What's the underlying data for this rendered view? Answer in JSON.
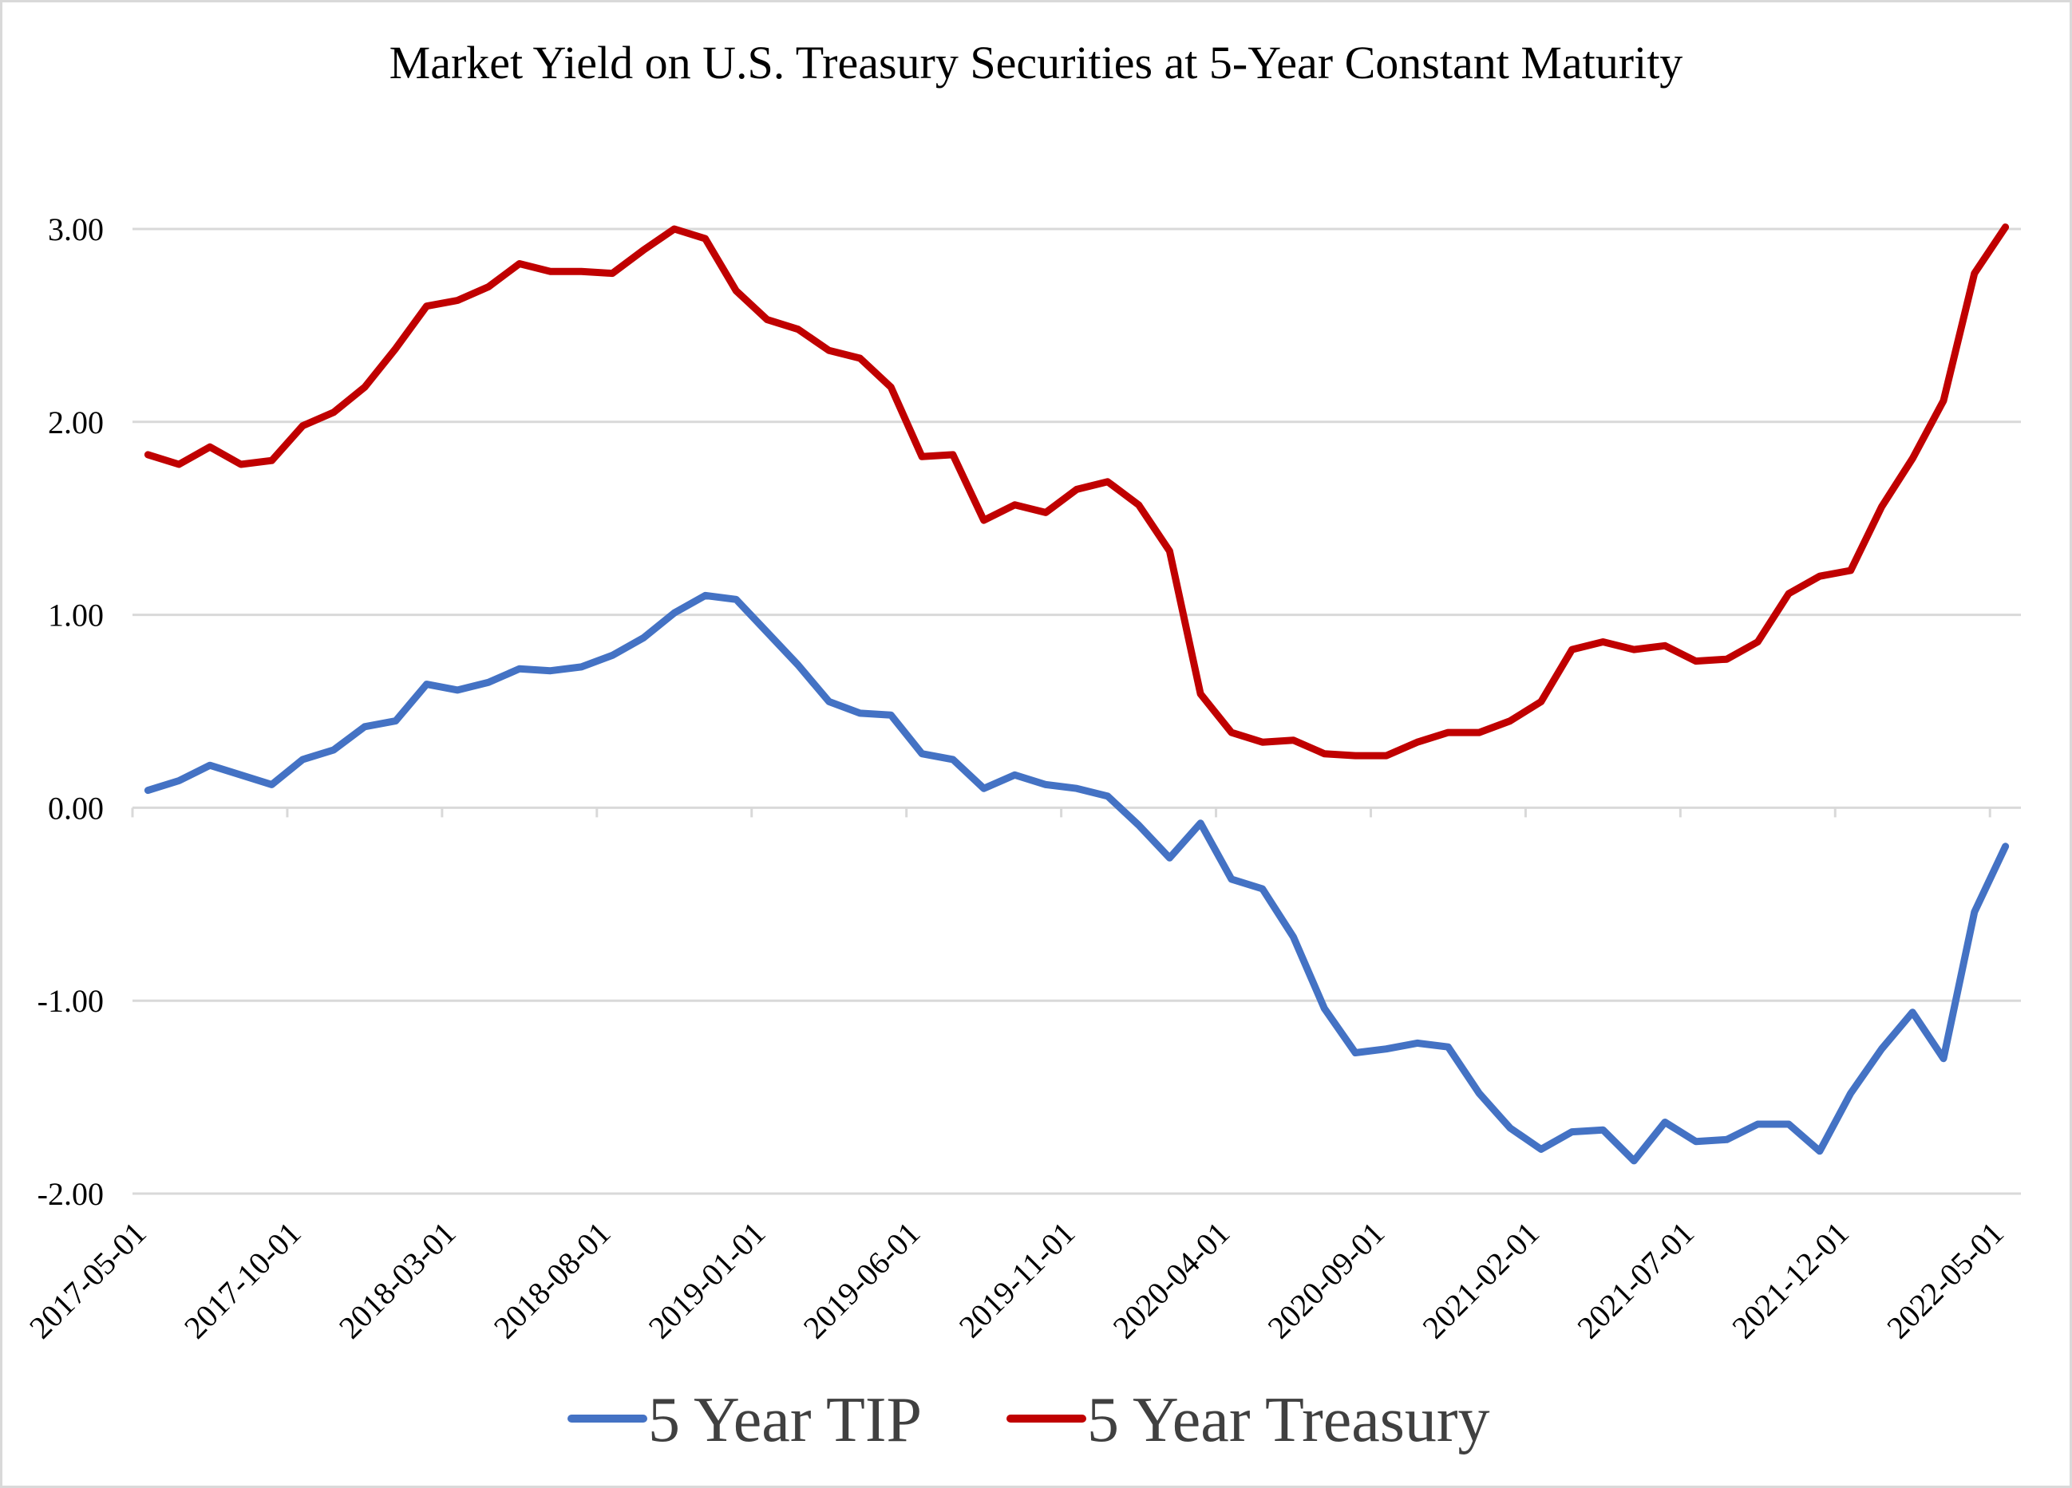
{
  "chart_data": {
    "type": "line",
    "title": "Market Yield on U.S. Treasury Securities at 5-Year Constant Maturity",
    "xlabel": "",
    "ylabel": "",
    "ylim": [
      -2,
      3
    ],
    "y_ticks": [
      "3.00",
      "2.00",
      "1.00",
      "0.00",
      "-1.00",
      "-2.00"
    ],
    "y_tick_values": [
      3,
      2,
      1,
      0,
      -1,
      -2
    ],
    "grid": true,
    "legend_position": "bottom",
    "x_tick_labels": [
      "2017-05-01",
      "2017-10-01",
      "2018-03-01",
      "2018-08-01",
      "2019-01-01",
      "2019-06-01",
      "2019-11-01",
      "2020-04-01",
      "2020-09-01",
      "2021-02-01",
      "2021-07-01",
      "2021-12-01",
      "2022-05-01"
    ],
    "x_tick_every": 5,
    "series": [
      {
        "name": "5 Year TIP",
        "color": "#4472c4",
        "values": [
          0.09,
          0.14,
          0.22,
          0.17,
          0.12,
          0.25,
          0.3,
          0.42,
          0.45,
          0.64,
          0.61,
          0.65,
          0.72,
          0.71,
          0.73,
          0.79,
          0.88,
          1.01,
          1.1,
          1.08,
          0.91,
          0.74,
          0.55,
          0.49,
          0.48,
          0.28,
          0.25,
          0.1,
          0.17,
          0.12,
          0.1,
          0.06,
          -0.09,
          -0.26,
          -0.08,
          -0.37,
          -0.42,
          -0.67,
          -1.04,
          -1.27,
          -1.25,
          -1.22,
          -1.24,
          -1.48,
          -1.66,
          -1.77,
          -1.68,
          -1.67,
          -1.83,
          -1.63,
          -1.73,
          -1.72,
          -1.64,
          -1.64,
          -1.78,
          -1.48,
          -1.25,
          -1.06,
          -1.3,
          -0.54,
          -0.2
        ]
      },
      {
        "name": "5 Year Treasury",
        "color": "#c00000",
        "values": [
          1.83,
          1.78,
          1.87,
          1.78,
          1.8,
          1.98,
          2.05,
          2.18,
          2.38,
          2.6,
          2.63,
          2.7,
          2.82,
          2.78,
          2.78,
          2.77,
          2.89,
          3.0,
          2.95,
          2.68,
          2.53,
          2.48,
          2.37,
          2.33,
          2.18,
          1.82,
          1.83,
          1.49,
          1.57,
          1.53,
          1.65,
          1.69,
          1.57,
          1.33,
          0.59,
          0.39,
          0.34,
          0.35,
          0.28,
          0.27,
          0.27,
          0.34,
          0.39,
          0.39,
          0.45,
          0.55,
          0.82,
          0.86,
          0.82,
          0.84,
          0.76,
          0.77,
          0.86,
          1.11,
          1.2,
          1.23,
          1.56,
          1.81,
          2.11,
          2.77,
          3.01
        ]
      }
    ]
  }
}
